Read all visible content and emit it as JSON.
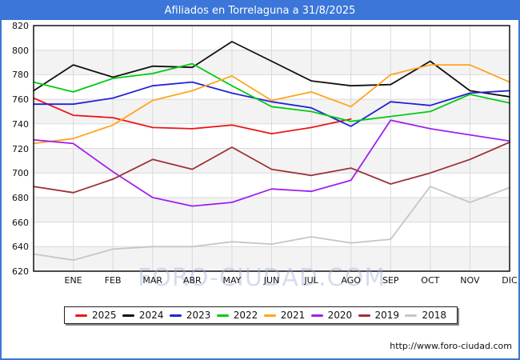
{
  "title": "Afiliados en Torrelaguna a 31/8/2025",
  "watermark": "FORO-CIUDAD.COM",
  "footer_url": "http://www.foro-ciudad.com",
  "colors": {
    "frame_and_titlebar": "#3b76d8",
    "gridline": "#d9d9d9",
    "band_shade": "#f3f3f3",
    "plot_border": "#111111"
  },
  "chart_data": {
    "type": "line",
    "title": "Afiliados en Torrelaguna a 31/8/2025",
    "x_labels": [
      "ENE",
      "FEB",
      "MAR",
      "ABR",
      "MAY",
      "JUN",
      "JUL",
      "AGO",
      "SEP",
      "OCT",
      "NOV",
      "DIC"
    ],
    "x_layout_note": "13 points per full series: first point sits on the left axis, the following 12 points sit on the ENE..DIC gridlines",
    "y_ticks": [
      820,
      800,
      780,
      760,
      740,
      720,
      700,
      680,
      660,
      640,
      620
    ],
    "ylim": [
      620,
      820
    ],
    "grid": true,
    "legend_position": "bottom",
    "series": [
      {
        "name": "2025",
        "color": "#ee1515",
        "values": [
          761,
          747,
          745,
          737,
          736,
          739,
          732,
          737,
          744
        ]
      },
      {
        "name": "2024",
        "color": "#111111",
        "values": [
          767,
          788,
          778,
          787,
          786,
          807,
          791,
          775,
          771,
          772,
          791,
          767,
          762
        ]
      },
      {
        "name": "2023",
        "color": "#2222d8",
        "values": [
          756,
          756,
          761,
          771,
          774,
          765,
          758,
          753,
          738,
          758,
          755,
          765,
          767
        ]
      },
      {
        "name": "2022",
        "color": "#00cc11",
        "values": [
          774,
          766,
          777,
          781,
          789,
          771,
          754,
          750,
          742,
          746,
          750,
          764,
          757
        ]
      },
      {
        "name": "2021",
        "color": "#ffa51e",
        "values": [
          724,
          728,
          739,
          759,
          767,
          779,
          759,
          766,
          754,
          780,
          788,
          788,
          774
        ]
      },
      {
        "name": "2020",
        "color": "#a020f0",
        "values": [
          727,
          724,
          701,
          680,
          673,
          676,
          687,
          685,
          694,
          743,
          736,
          731,
          726
        ]
      },
      {
        "name": "2019",
        "color": "#9e3232",
        "values": [
          689,
          684,
          695,
          711,
          703,
          721,
          703,
          698,
          704,
          691,
          700,
          711,
          725
        ]
      },
      {
        "name": "2018",
        "color": "#c6c6c6",
        "values": [
          634,
          629,
          638,
          640,
          640,
          644,
          642,
          648,
          643,
          646,
          689,
          676,
          688
        ]
      }
    ]
  }
}
